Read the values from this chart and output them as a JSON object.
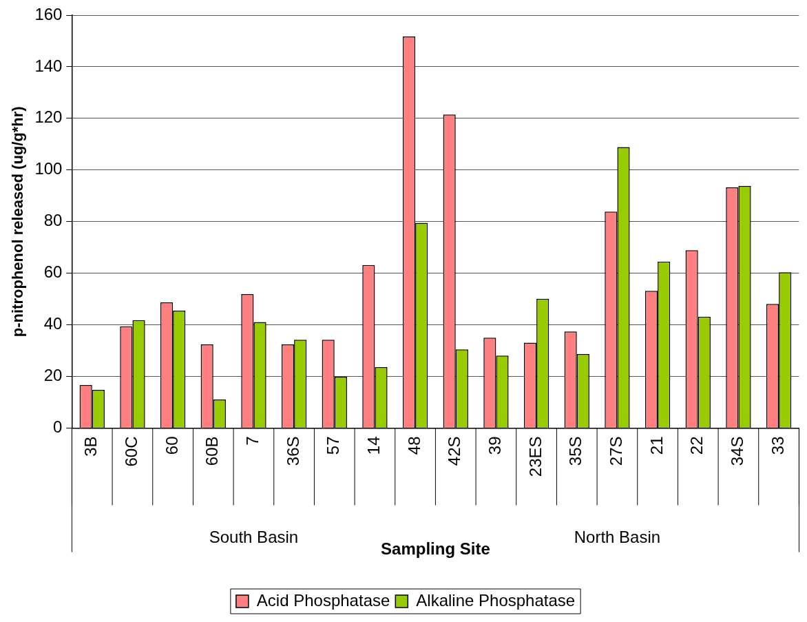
{
  "chart_data": {
    "type": "bar",
    "xlabel": "Sampling Site",
    "ylabel": "p-nitrophenol released (ug/g*hr)",
    "categories": [
      "3B",
      "60C",
      "60",
      "60B",
      "7",
      "36S",
      "57",
      "14",
      "48",
      "42S",
      "39",
      "23ES",
      "35S",
      "27S",
      "21",
      "22",
      "34S",
      "33"
    ],
    "series": [
      {
        "name": "Acid Phosphatase",
        "color": "#ff8080",
        "values": [
          16.7,
          39.4,
          48.7,
          32.4,
          51.9,
          32.4,
          34.2,
          63.2,
          151.7,
          121.5,
          35.0,
          33.1,
          37.4,
          83.9,
          53.2,
          68.9,
          93.3,
          48.1
        ]
      },
      {
        "name": "Alkaline Phosphatase",
        "color": "#99cc00",
        "values": [
          14.8,
          41.8,
          45.5,
          11.1,
          41.1,
          34.2,
          19.9,
          23.6,
          79.5,
          30.5,
          28.1,
          50.1,
          28.7,
          108.9,
          64.5,
          43.2,
          93.8,
          60.4
        ]
      }
    ],
    "ylim": [
      0,
      160
    ],
    "yticks": [
      0,
      20,
      40,
      60,
      80,
      100,
      120,
      140,
      160
    ],
    "grid": "y",
    "legend": "bottom",
    "annotations": [
      "South Basin",
      "North Basin"
    ]
  }
}
